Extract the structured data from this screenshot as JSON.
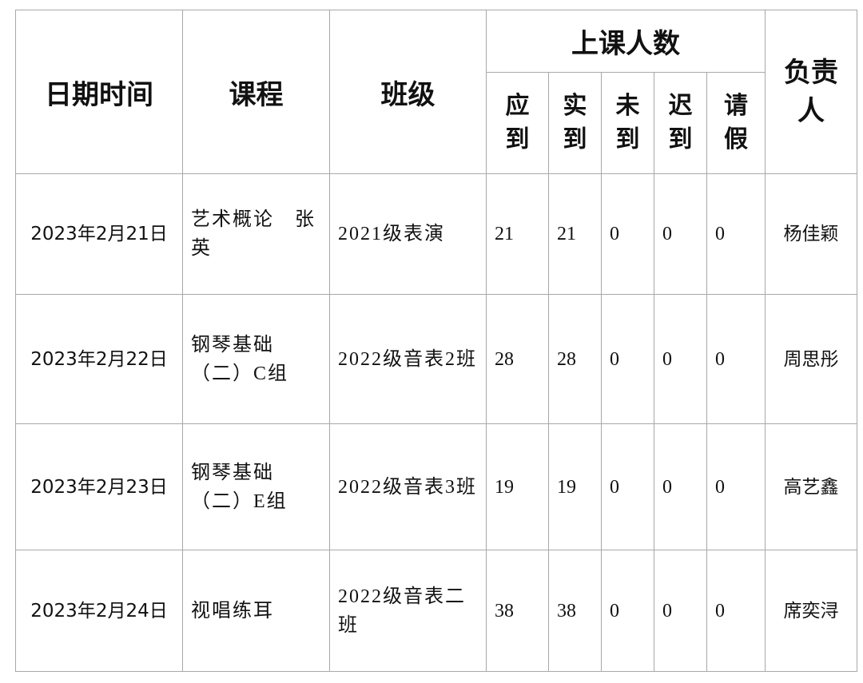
{
  "headers": {
    "date": "日期时间",
    "course": "课程",
    "class": "班级",
    "attendance": "上课人数",
    "expected": "应到",
    "present": "实到",
    "absent": "未到",
    "late": "迟到",
    "leave": "请假",
    "owner": "负责人"
  },
  "rows": [
    {
      "date": "2023年2月21日",
      "course": "艺术概论　张英",
      "class": "2021级表演",
      "expected": "21",
      "present": "21",
      "absent": "0",
      "late": "0",
      "leave": "0",
      "owner": "杨佳颖"
    },
    {
      "date": "2023年2月22日",
      "course": "钢琴基础（二）C组",
      "class": "2022级音表2班",
      "expected": "28",
      "present": "28",
      "absent": "0",
      "late": "0",
      "leave": "0",
      "owner": "周思彤"
    },
    {
      "date": "2023年2月23日",
      "course": "钢琴基础（二）E组",
      "class": "2022级音表3班",
      "expected": "19",
      "present": "19",
      "absent": "0",
      "late": "0",
      "leave": "0",
      "owner": "高艺鑫"
    },
    {
      "date": "2023年2月24日",
      "course": "视唱练耳",
      "class": "2022级音表二班",
      "expected": "38",
      "present": "38",
      "absent": "0",
      "late": "0",
      "leave": "0",
      "owner": "席奕浔"
    }
  ]
}
